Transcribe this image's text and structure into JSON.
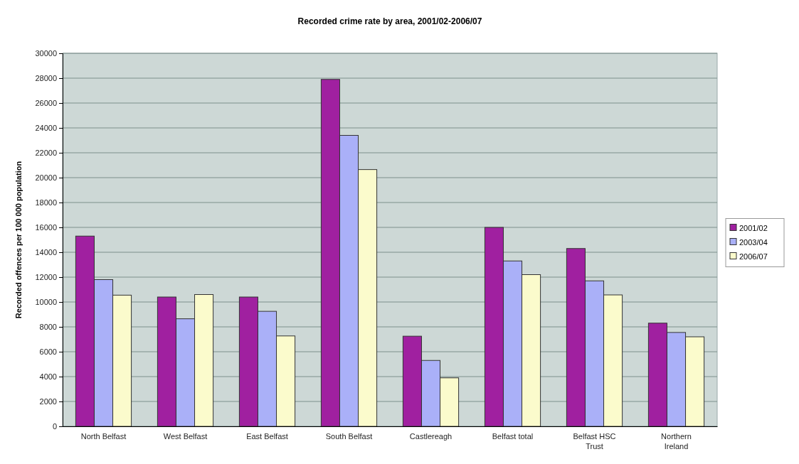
{
  "chart_data": {
    "type": "bar",
    "title": "Recorded crime rate by area, 2001/02-2006/07",
    "ylabel": "Recorded offences per 100 000 population",
    "categories": [
      "North Belfast",
      "West Belfast",
      "East Belfast",
      "South Belfast",
      "Castlereagh",
      "Belfast total",
      "Belfast HSC Trust",
      "Northern Ireland"
    ],
    "series": [
      {
        "name": "2001/02",
        "color": "#a020a0",
        "values": [
          15300,
          10400,
          10400,
          27900,
          7250,
          16000,
          14300,
          8300
        ]
      },
      {
        "name": "2003/04",
        "color": "#aab0f8",
        "values": [
          11800,
          8650,
          9250,
          23400,
          5300,
          13300,
          11700,
          7550
        ]
      },
      {
        "name": "2006/07",
        "color": "#fbfbcc",
        "values": [
          10550,
          10600,
          7270,
          20650,
          3900,
          12200,
          10570,
          7200
        ]
      }
    ],
    "ylim": [
      0,
      30000
    ],
    "yticks": [
      0,
      2000,
      4000,
      6000,
      8000,
      10000,
      12000,
      14000,
      16000,
      18000,
      20000,
      22000,
      24000,
      26000,
      28000,
      30000
    ],
    "grid": "y",
    "legend": "right"
  }
}
